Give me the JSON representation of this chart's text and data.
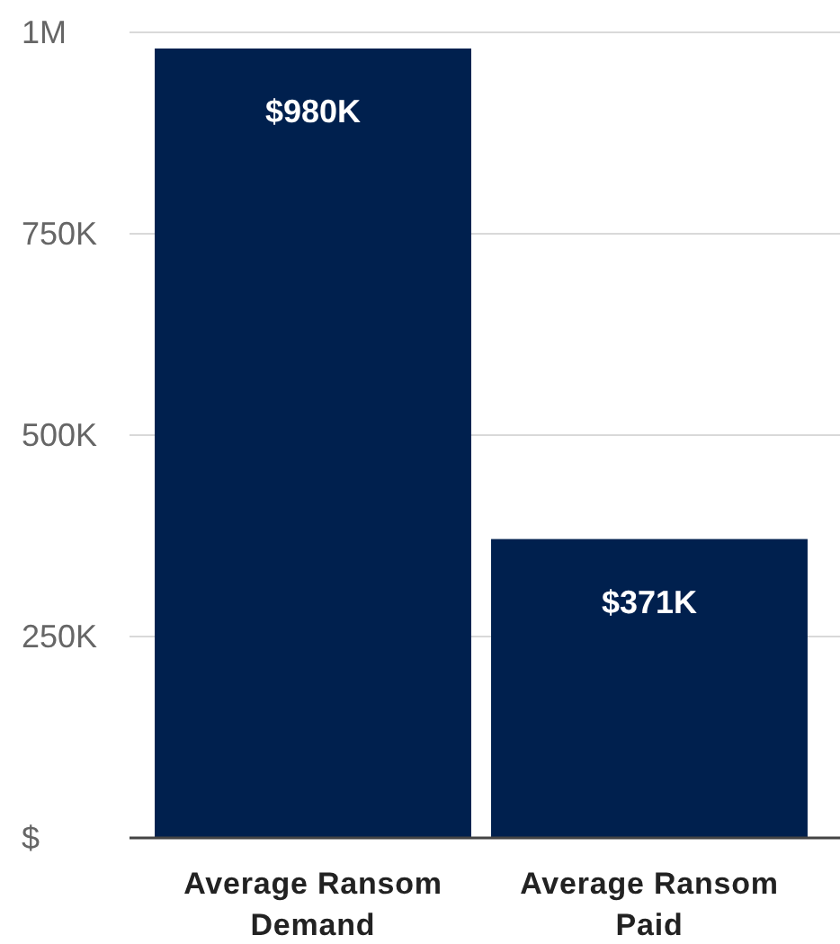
{
  "chart_data": {
    "type": "bar",
    "categories": [
      "Average Ransom Demand",
      "Average Ransom Paid"
    ],
    "values": [
      980000,
      371000
    ],
    "color": "#00204e",
    "value_labels": [
      "$980K",
      "$371K"
    ],
    "ylim": [
      0,
      1000000
    ],
    "yticks": [
      {
        "value": 0,
        "label": "$"
      },
      {
        "value": 250000,
        "label": "250K"
      },
      {
        "value": 500000,
        "label": "500K"
      },
      {
        "value": 750000,
        "label": "750K"
      },
      {
        "value": 1000000,
        "label": "1M"
      }
    ],
    "grid": "y"
  }
}
